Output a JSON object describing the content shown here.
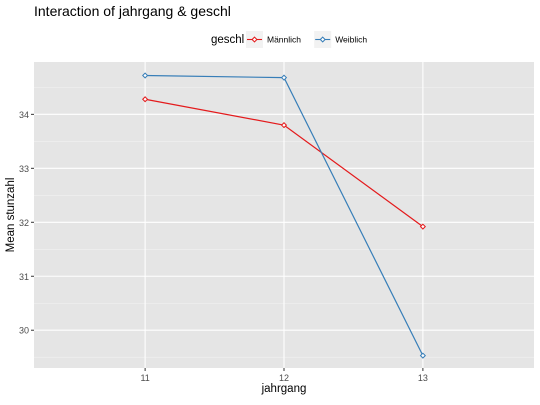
{
  "chart_data": {
    "type": "line",
    "title": "Interaction of jahrgang & geschl",
    "xlabel": "jahrgang",
    "ylabel": "Mean stunzahl",
    "legend_title": "geschl",
    "legend_position": "top",
    "grid": true,
    "categories": [
      "11",
      "12",
      "13"
    ],
    "ylim": [
      29.3,
      34.97
    ],
    "yticks": [
      30,
      31,
      32,
      33,
      34
    ],
    "series": [
      {
        "name": "Männlich",
        "color": "#e41a1c",
        "values": [
          34.28,
          33.8,
          31.92
        ]
      },
      {
        "name": "Weiblich",
        "color": "#377eb8",
        "values": [
          34.72,
          34.68,
          29.53
        ]
      }
    ]
  }
}
